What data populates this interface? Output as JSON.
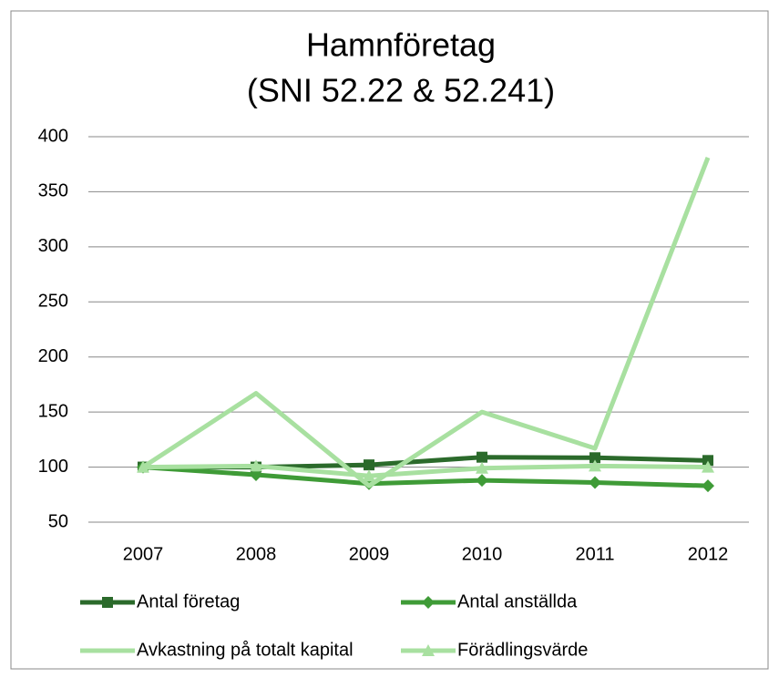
{
  "chart_data": {
    "type": "line",
    "title": [
      "Hamnföretag",
      "(SNI 52.22 & 52.241)"
    ],
    "categories": [
      "2007",
      "2008",
      "2009",
      "2010",
      "2011",
      "2012"
    ],
    "series": [
      {
        "name": "Antal företag",
        "color": "#2b6a2b",
        "marker": "square",
        "values": [
          100,
          100,
          102,
          109,
          108.5,
          106
        ]
      },
      {
        "name": "Antal anställda",
        "color": "#3f9b37",
        "marker": "diamond",
        "values": [
          100,
          93,
          85,
          88,
          86,
          83
        ]
      },
      {
        "name": "Avkastning på totalt kapital",
        "color": "#a8e0a0",
        "marker": null,
        "values": [
          100,
          167,
          83,
          150,
          117,
          381
        ]
      },
      {
        "name": "Förädlingsvärde",
        "color": "#a8e0a0",
        "marker": "triangle",
        "values": [
          100,
          101,
          92,
          99,
          101,
          100
        ]
      }
    ],
    "ylim": [
      50,
      400
    ],
    "yticks": [
      50,
      100,
      150,
      200,
      250,
      300,
      350,
      400
    ],
    "grid": true,
    "legend": "bottom"
  }
}
